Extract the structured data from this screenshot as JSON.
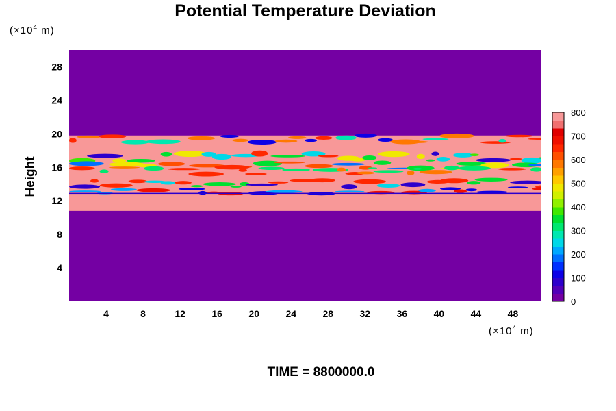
{
  "chart_data": {
    "type": "heatmap",
    "title": "Potential Temperature Deviation",
    "ylabel": "Height",
    "xunit": {
      "prefix": "(×10",
      "exp": "4",
      "suffix": " m)"
    },
    "yunit": {
      "prefix": "(×10",
      "exp": "4",
      "suffix": " m)"
    },
    "footer": "TIME = 8800000.0",
    "xlim": [
      0,
      51
    ],
    "ylim": [
      0,
      30
    ],
    "xticks": [
      "4",
      "8",
      "12",
      "16",
      "20",
      "24",
      "28",
      "32",
      "36",
      "40",
      "44",
      "48"
    ],
    "xtick_values": [
      4,
      8,
      12,
      16,
      20,
      24,
      28,
      32,
      36,
      40,
      44,
      48
    ],
    "yticks": [
      "4",
      "8",
      "12",
      "16",
      "20",
      "24",
      "28"
    ],
    "ytick_values": [
      4,
      8,
      12,
      16,
      20,
      24,
      28
    ],
    "colorbar": {
      "min": 0,
      "max": 800,
      "tick_labels": [
        "0",
        "100",
        "200",
        "300",
        "400",
        "500",
        "600",
        "700",
        "800"
      ],
      "tick_values": [
        0,
        100,
        200,
        300,
        400,
        500,
        600,
        700,
        800
      ],
      "colors": [
        "#7400a3",
        "#5200b8",
        "#2d00cc",
        "#0d00e6",
        "#0030ff",
        "#0070ff",
        "#00a8ff",
        "#00d8e8",
        "#00e8b0",
        "#00e870",
        "#00e030",
        "#40e800",
        "#90f000",
        "#d0f000",
        "#f0e800",
        "#ffc800",
        "#ffa000",
        "#ff7800",
        "#ff5000",
        "#ff2800",
        "#f01000",
        "#e00000",
        "#f07070",
        "#f89898"
      ]
    },
    "layers": [
      {
        "from_y": 0,
        "to_y": 10.8,
        "value": 0
      },
      {
        "from_y": 10.8,
        "to_y": 19.8,
        "value": 800,
        "note": "band with turbulent structures"
      },
      {
        "from_y": 19.8,
        "to_y": 30,
        "value": 0
      }
    ]
  }
}
